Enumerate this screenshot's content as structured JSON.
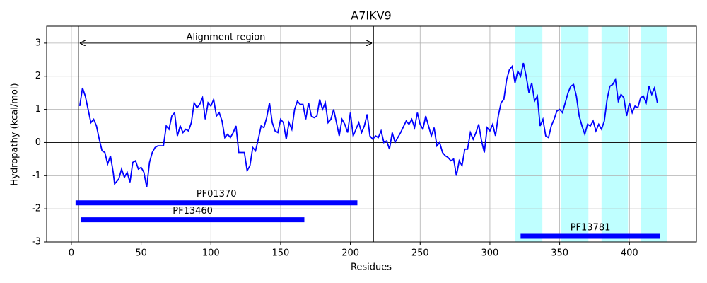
{
  "chart_data": {
    "type": "line",
    "title": "A7IKV9",
    "xlabel": "Residues",
    "ylabel": "Hydropathy (kcal/mol)",
    "color": "#0000ff",
    "grid": true,
    "xlim": [
      -17.7,
      448
    ],
    "ylim": [
      -3,
      3.51
    ],
    "xticks": [
      0,
      50,
      100,
      150,
      200,
      250,
      300,
      350,
      400
    ],
    "yticks": [
      -3,
      -2,
      -1,
      0,
      1,
      2,
      3
    ],
    "x": [
      6,
      8,
      10,
      12,
      14,
      16,
      18,
      20,
      22,
      24,
      26,
      28,
      30,
      31,
      34,
      36,
      38,
      40,
      42,
      44,
      46,
      48,
      50,
      52,
      54,
      56,
      58,
      60,
      62,
      66,
      68,
      70,
      72,
      74,
      76,
      78,
      80,
      82,
      84,
      86,
      88,
      90,
      92,
      94,
      96,
      98,
      100,
      102,
      104,
      106,
      108,
      110,
      112,
      114,
      116,
      118,
      120,
      124,
      126,
      128,
      130,
      132,
      134,
      136,
      138,
      140,
      142,
      144,
      146,
      148,
      150,
      152,
      154,
      156,
      158,
      160,
      162,
      164,
      166,
      168,
      170,
      172,
      174,
      176,
      178,
      180,
      182,
      184,
      186,
      188,
      190,
      192,
      194,
      196,
      198,
      200,
      202,
      204,
      206,
      208,
      210,
      212,
      214,
      216,
      218,
      220,
      222,
      224,
      226,
      228,
      230,
      232,
      236,
      240,
      242,
      244,
      246,
      248,
      250,
      252,
      254,
      256,
      258,
      260,
      262,
      264,
      266,
      268,
      270,
      272,
      274,
      276,
      278,
      280,
      282,
      284,
      286,
      288,
      290,
      292,
      294,
      296,
      298,
      300,
      302,
      304,
      306,
      308,
      310,
      312,
      314,
      316,
      318,
      320,
      322,
      324,
      326,
      328,
      330,
      332,
      334,
      336,
      338,
      340,
      342,
      344,
      346,
      348,
      350,
      352,
      354,
      356,
      358,
      360,
      362,
      364,
      366,
      368,
      370,
      372,
      374,
      376,
      378,
      380,
      382,
      384,
      386,
      388,
      390,
      392,
      394,
      396,
      398,
      400,
      402,
      404,
      406,
      408,
      410,
      412,
      414,
      416,
      418,
      420
    ],
    "values": [
      1.1,
      1.65,
      1.4,
      1.0,
      0.6,
      0.7,
      0.5,
      0.1,
      -0.25,
      -0.3,
      -0.65,
      -0.4,
      -0.9,
      -1.25,
      -1.1,
      -0.8,
      -1.05,
      -0.9,
      -1.2,
      -0.6,
      -0.55,
      -0.8,
      -0.75,
      -0.9,
      -1.35,
      -0.6,
      -0.3,
      -0.15,
      -0.1,
      -0.1,
      0.5,
      0.4,
      0.8,
      0.9,
      0.2,
      0.5,
      0.3,
      0.4,
      0.35,
      0.6,
      1.2,
      1.05,
      1.15,
      1.35,
      0.7,
      1.2,
      1.1,
      1.3,
      0.8,
      0.9,
      0.65,
      0.15,
      0.25,
      0.15,
      0.3,
      0.5,
      -0.3,
      -0.3,
      -0.85,
      -0.7,
      -0.15,
      -0.25,
      0.1,
      0.5,
      0.45,
      0.75,
      1.2,
      0.6,
      0.35,
      0.3,
      0.7,
      0.6,
      0.1,
      0.6,
      0.4,
      1.0,
      1.25,
      1.15,
      1.15,
      0.7,
      1.2,
      0.8,
      0.75,
      0.8,
      1.3,
      1.0,
      1.2,
      0.6,
      0.7,
      1.0,
      0.6,
      0.2,
      0.7,
      0.55,
      0.3,
      0.9,
      0.2,
      0.4,
      0.6,
      0.3,
      0.5,
      0.85,
      0.2,
      0.1,
      0.2,
      0.15,
      0.35,
      0.0,
      0.05,
      -0.2,
      0.3,
      0.0,
      0.3,
      0.65,
      0.55,
      0.7,
      0.45,
      0.9,
      0.55,
      0.4,
      0.8,
      0.5,
      0.2,
      0.45,
      -0.1,
      0.0,
      -0.3,
      -0.4,
      -0.45,
      -0.55,
      -0.5,
      -1.0,
      -0.55,
      -0.7,
      -0.2,
      -0.2,
      0.3,
      0.1,
      0.3,
      0.55,
      0.05,
      -0.3,
      0.45,
      0.35,
      0.55,
      0.2,
      0.8,
      1.2,
      1.3,
      1.9,
      2.2,
      2.3,
      1.8,
      2.15,
      2.0,
      2.4,
      2.0,
      1.5,
      1.8,
      1.25,
      1.4,
      0.5,
      0.7,
      0.2,
      0.15,
      0.5,
      0.7,
      0.95,
      1.0,
      0.9,
      1.2,
      1.5,
      1.7,
      1.75,
      1.4,
      0.8,
      0.5,
      0.25,
      0.55,
      0.5,
      0.65,
      0.35,
      0.55,
      0.4,
      0.65,
      1.3,
      1.7,
      1.75,
      1.9,
      1.25,
      1.45,
      1.35,
      0.8,
      1.2,
      0.9,
      1.1,
      1.05,
      1.35,
      1.4,
      1.2,
      1.7,
      1.45,
      1.65,
      1.2
    ],
    "regions": [
      {
        "start": 318,
        "end": 337.6,
        "color": "#bfffff"
      },
      {
        "start": 351,
        "end": 370.6,
        "color": "#bfffff"
      },
      {
        "start": 380,
        "end": 399,
        "color": "#bfffff"
      },
      {
        "start": 408,
        "end": 427,
        "color": "#bfffff"
      }
    ],
    "domains": [
      {
        "label": "PF01370",
        "start": 3,
        "end": 205,
        "y": -1.82
      },
      {
        "label": "PF13460",
        "start": 7,
        "end": 167,
        "y": -2.33
      },
      {
        "label": "PF13781",
        "start": 322,
        "end": 422,
        "y": -2.83
      }
    ],
    "domain_color": "#0000ff",
    "alignment": {
      "label": "Alignment region",
      "start": 5,
      "end": 216.5,
      "y": 3
    }
  }
}
